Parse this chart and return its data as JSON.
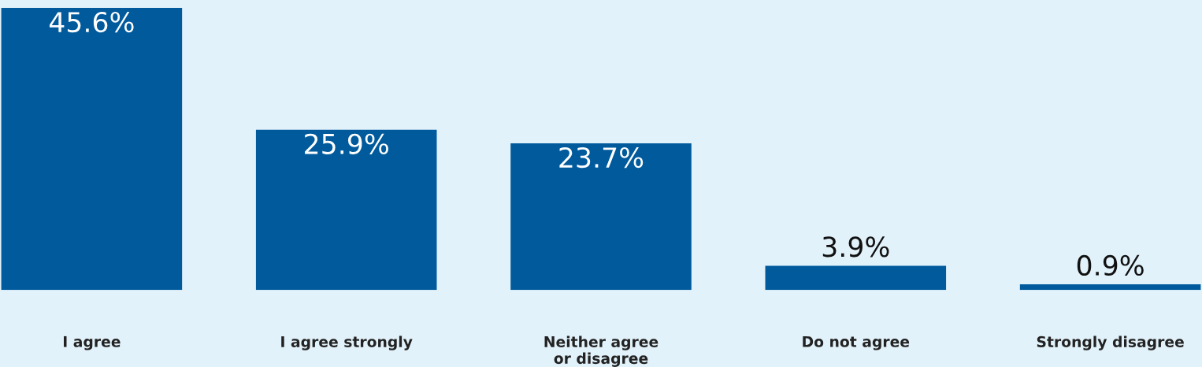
{
  "chart_data": {
    "type": "bar",
    "categories": [
      "I agree",
      "I agree strongly",
      "Neither agree or disagree",
      "Do not agree",
      "Strongly disagree"
    ],
    "values": [
      45.6,
      25.9,
      23.7,
      3.9,
      0.9
    ],
    "value_labels": [
      "45.6%",
      "25.9%",
      "23.7%",
      "3.9%",
      "0.9%"
    ],
    "color": "#005a9c",
    "grid": false,
    "legend": false
  }
}
